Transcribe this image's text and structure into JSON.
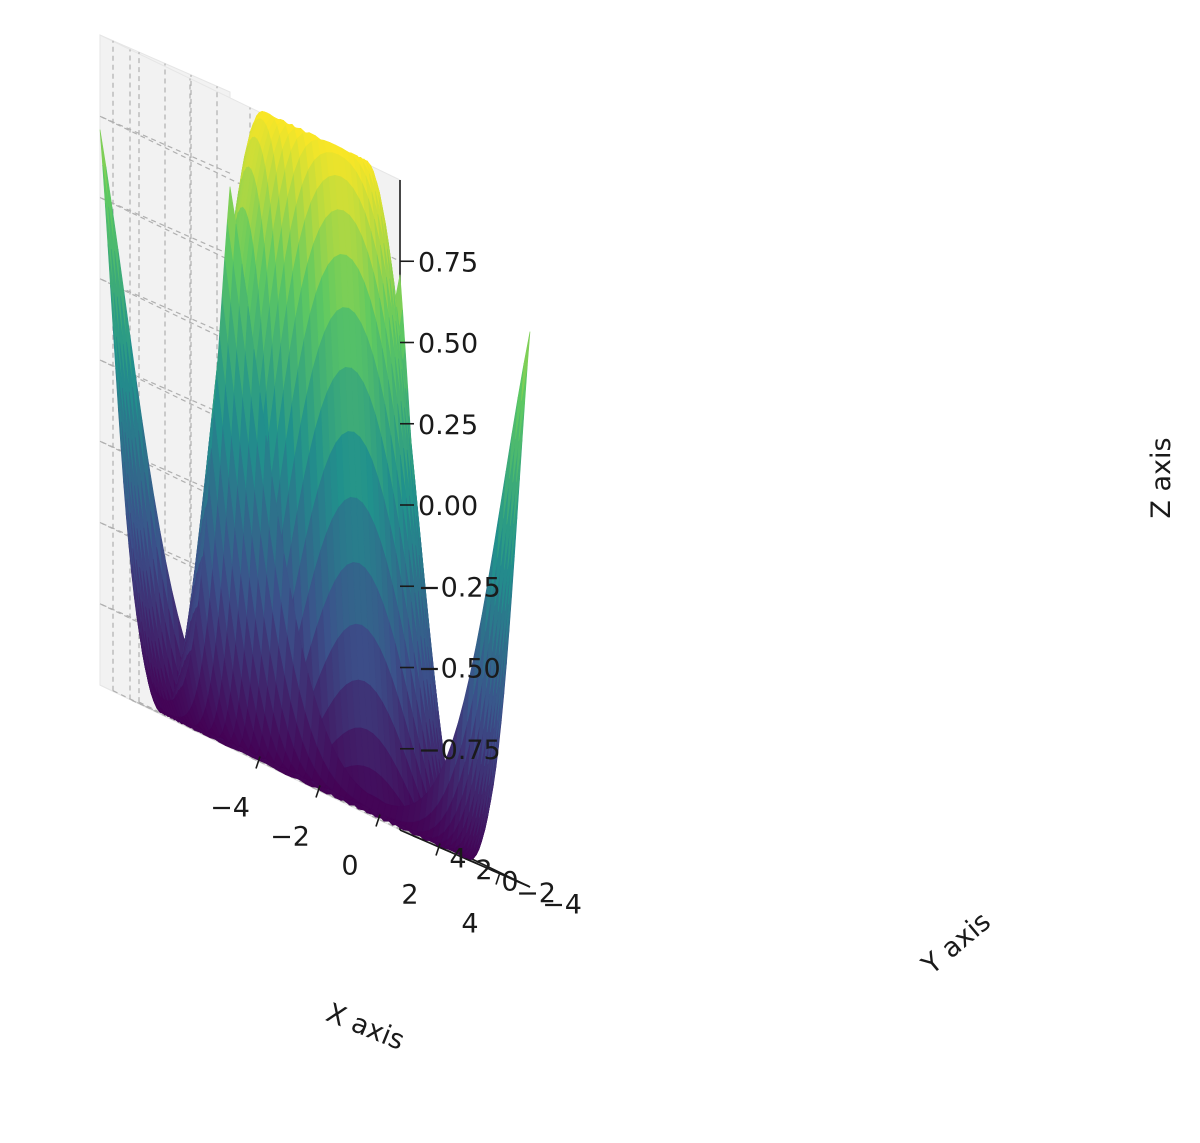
{
  "chart_data": {
    "type": "surface3d",
    "function": "sin(sqrt(x^2 + y^2))",
    "colormap": "viridis",
    "colormap_stops": [
      "#440154",
      "#3b528b",
      "#21918c",
      "#5ec962",
      "#fde725"
    ],
    "pane_color": "#f2f2f2",
    "grid": true,
    "x": {
      "label": "X axis",
      "range": [
        -5,
        5
      ],
      "ticks": [
        -4,
        -2,
        0,
        2,
        4
      ]
    },
    "y": {
      "label": "Y axis",
      "range": [
        -5,
        5
      ],
      "ticks": [
        -4,
        -2,
        0,
        2,
        4
      ]
    },
    "z": {
      "label": "Z axis",
      "range": [
        -1,
        1
      ],
      "ticks": [
        -0.75,
        -0.5,
        -0.25,
        0.0,
        0.25,
        0.5,
        0.75
      ]
    }
  }
}
